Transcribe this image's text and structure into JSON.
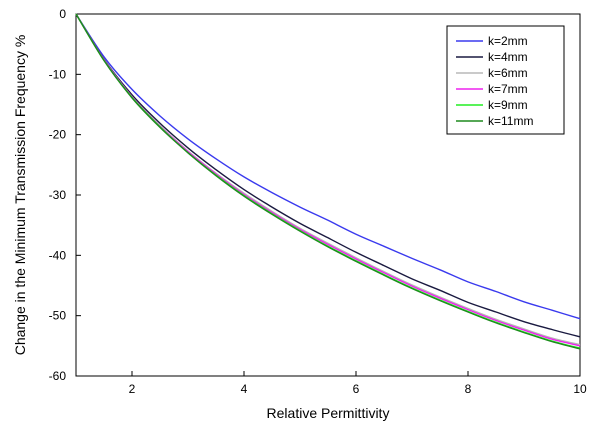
{
  "chart_data": {
    "type": "line",
    "xlabel": "Relative Permittivity",
    "ylabel": "Change in the Minimum Transmission Frequency %",
    "xlim": [
      1,
      10
    ],
    "ylim": [
      -60,
      0
    ],
    "xticks": [
      2,
      4,
      6,
      8,
      10
    ],
    "yticks": [
      0,
      -10,
      -20,
      -30,
      -40,
      -50,
      -60
    ],
    "grid": false,
    "legend_position": "top-right",
    "x": [
      1,
      1.5,
      2,
      2.5,
      3,
      3.5,
      4,
      4.5,
      5,
      5.5,
      6,
      6.5,
      7,
      7.5,
      8,
      8.5,
      9,
      9.5,
      10
    ],
    "series": [
      {
        "name": "k=2mm",
        "color": "#3a3aee",
        "values": [
          0,
          -7.1,
          -12.5,
          -16.9,
          -20.7,
          -24.0,
          -27.0,
          -29.6,
          -32.0,
          -34.2,
          -36.5,
          -38.5,
          -40.5,
          -42.4,
          -44.4,
          -46.0,
          -47.7,
          -49.1,
          -50.5
        ]
      },
      {
        "name": "k=4mm",
        "color": "#1a1a40",
        "values": [
          0,
          -7.5,
          -13.4,
          -18.1,
          -22.2,
          -25.8,
          -29.1,
          -32.0,
          -34.7,
          -37.1,
          -39.5,
          -41.7,
          -43.9,
          -45.8,
          -47.8,
          -49.4,
          -51.0,
          -52.3,
          -53.5
        ]
      },
      {
        "name": "k=6mm",
        "color": "#b8b8b8",
        "values": [
          0,
          -7.6,
          -13.7,
          -18.5,
          -22.7,
          -26.4,
          -29.7,
          -32.7,
          -35.5,
          -38.0,
          -40.4,
          -42.7,
          -44.9,
          -46.9,
          -48.8,
          -50.6,
          -52.2,
          -53.7,
          -54.8
        ]
      },
      {
        "name": "k=7mm",
        "color": "#ee22ee",
        "values": [
          0,
          -7.6,
          -13.7,
          -18.6,
          -22.8,
          -26.5,
          -29.9,
          -32.9,
          -35.7,
          -38.2,
          -40.6,
          -42.9,
          -45.1,
          -47.1,
          -49.0,
          -50.8,
          -52.4,
          -53.9,
          -55.0
        ]
      },
      {
        "name": "k=9mm",
        "color": "#22ee22",
        "values": [
          0,
          -7.7,
          -13.8,
          -18.7,
          -23.0,
          -26.7,
          -30.1,
          -33.1,
          -35.9,
          -38.5,
          -40.9,
          -43.2,
          -45.4,
          -47.4,
          -49.3,
          -51.1,
          -52.7,
          -54.2,
          -55.4
        ]
      },
      {
        "name": "k=11mm",
        "color": "#1e8a1e",
        "values": [
          0,
          -7.7,
          -13.9,
          -18.8,
          -23.0,
          -26.8,
          -30.2,
          -33.2,
          -36.0,
          -38.6,
          -41.0,
          -43.3,
          -45.5,
          -47.5,
          -49.4,
          -51.2,
          -52.8,
          -54.3,
          -55.5
        ]
      }
    ]
  }
}
